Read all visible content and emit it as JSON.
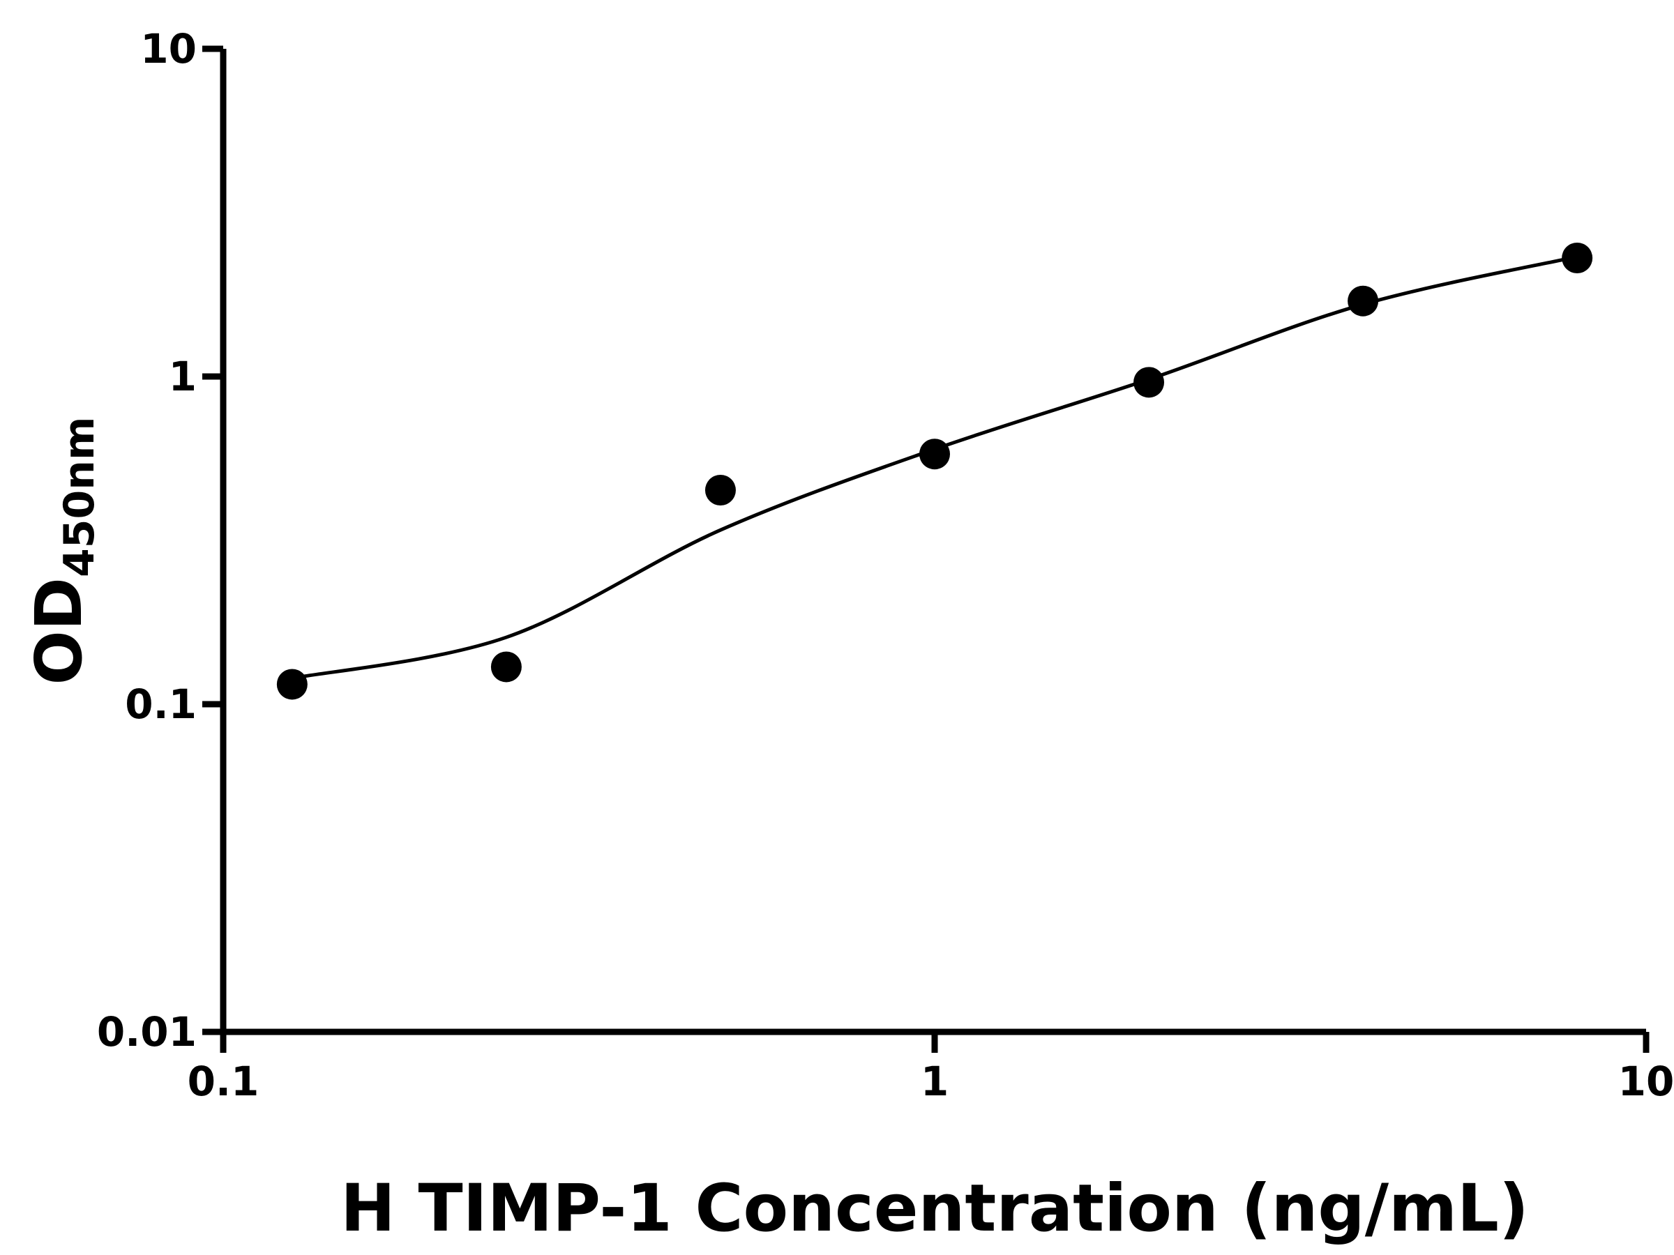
{
  "page": {
    "background": "#ffffff"
  },
  "chart_data": {
    "type": "scatter",
    "title": "",
    "xlabel": "H TIMP-1 Concentration (ng/mL)",
    "ylabel": "OD450nm",
    "ylabel_main": "OD",
    "ylabel_sub": "450nm",
    "x_scale": "log",
    "y_scale": "log",
    "xlim": [
      0.1,
      10
    ],
    "ylim": [
      0.01,
      10
    ],
    "x_tick_labels": [
      "0.1",
      "1",
      "10"
    ],
    "y_tick_labels": [
      "0.01",
      "0.1",
      "1",
      "10"
    ],
    "grid": false,
    "legend": "none",
    "axis_color": "#000000",
    "marker_color": "#000000",
    "line_color": "#000000",
    "series": [
      {
        "name": "standard-points",
        "type": "scatter",
        "marker": "circle-filled",
        "x": [
          0.125,
          0.25,
          0.5,
          1,
          2,
          4,
          8
        ],
        "y": [
          0.115,
          0.13,
          0.45,
          0.58,
          0.96,
          1.7,
          2.3
        ]
      },
      {
        "name": "fitted-curve",
        "type": "line-smooth",
        "x": [
          0.125,
          0.25,
          0.5,
          1,
          2,
          4,
          8
        ],
        "y": [
          0.12,
          0.16,
          0.34,
          0.6,
          0.98,
          1.66,
          2.32
        ]
      }
    ]
  }
}
